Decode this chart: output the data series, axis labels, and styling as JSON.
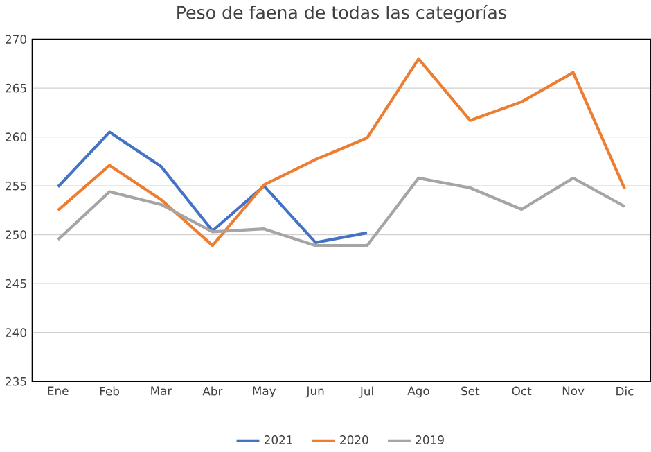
{
  "chart_data": {
    "type": "line",
    "title": "Peso de faena de todas las categorías",
    "categories": [
      "Ene",
      "Feb",
      "Mar",
      "Abr",
      "May",
      "Jun",
      "Jul",
      "Ago",
      "Set",
      "Oct",
      "Nov",
      "Dic"
    ],
    "series": [
      {
        "name": "2021",
        "color": "#4472c4",
        "values": [
          254.9,
          260.5,
          257.0,
          250.4,
          255.0,
          249.2,
          250.2,
          null,
          null,
          null,
          null,
          null
        ]
      },
      {
        "name": "2020",
        "color": "#ed7d31",
        "values": [
          252.5,
          257.1,
          253.6,
          248.9,
          255.1,
          257.7,
          259.9,
          268.0,
          261.7,
          263.6,
          266.6,
          254.7
        ]
      },
      {
        "name": "2019",
        "color": "#a5a5a5",
        "values": [
          249.5,
          254.4,
          253.1,
          250.3,
          250.6,
          248.9,
          248.9,
          255.8,
          254.8,
          252.6,
          255.8,
          252.9
        ]
      }
    ],
    "ylim": [
      235,
      270
    ],
    "yticks": [
      235,
      240,
      245,
      250,
      255,
      260,
      265,
      270
    ],
    "grid": "y",
    "legend": "bottom",
    "marker": "none",
    "line_style": "solid"
  }
}
